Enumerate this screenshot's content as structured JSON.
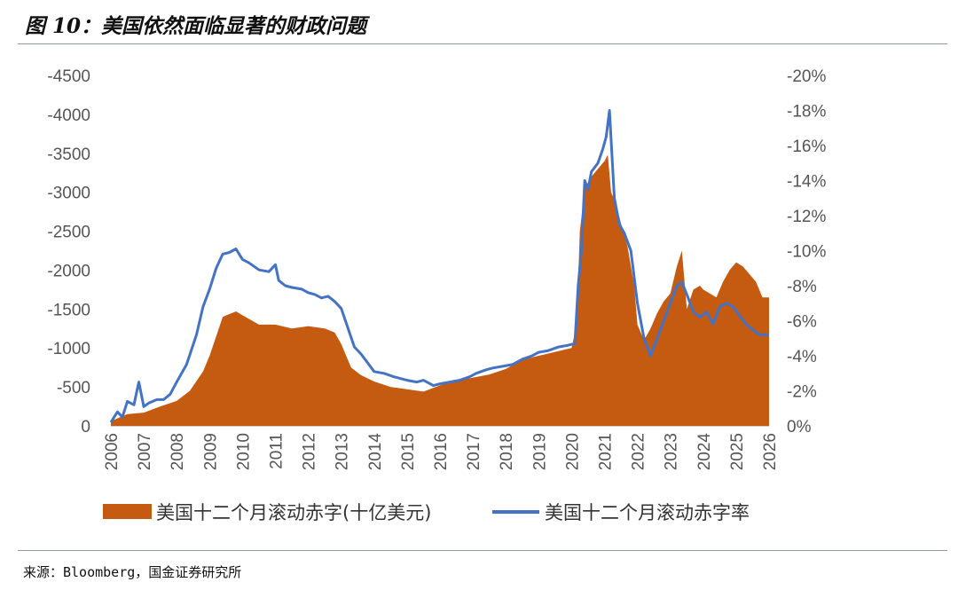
{
  "title": "图 10：美国依然面临显著的财政问题",
  "source": "来源：Bloomberg，国金证券研究所",
  "colors": {
    "deficit": "#c55a11",
    "ratio": "#4472c4",
    "axis": "#bfbfbf",
    "text": "#555555"
  },
  "chart_data": {
    "type": "area",
    "categories": [
      "2006",
      "2007",
      "2008",
      "2009",
      "2010",
      "2011",
      "2012",
      "2013",
      "2014",
      "2015",
      "2016",
      "2017",
      "2018",
      "2019",
      "2020",
      "2021",
      "2022",
      "2023",
      "2024",
      "2025",
      "2026"
    ],
    "y_left": {
      "ylim": [
        0,
        -4500
      ],
      "ticks": [
        "0",
        "-500",
        "-1000",
        "-1500",
        "-2000",
        "-2500",
        "-3000",
        "-3500",
        "-4000",
        "-4500"
      ]
    },
    "y_right": {
      "ylim": [
        0,
        -20
      ],
      "ticks": [
        "0%",
        "-2%",
        "-4%",
        "-6%",
        "-8%",
        "-10%",
        "-12%",
        "-14%",
        "-16%",
        "-18%",
        "-20%"
      ]
    },
    "legend": [
      "美国十二个月滚动赤字(十亿美元)",
      "美国十二个月滚动赤字率"
    ],
    "series": [
      {
        "name": "美国十二个月滚动赤字(十亿美元)",
        "type": "area",
        "axis": "left",
        "x": [
          2006.0,
          2006.5,
          2007.0,
          2007.5,
          2008.0,
          2008.4,
          2008.8,
          2009.0,
          2009.2,
          2009.4,
          2009.8,
          2010.0,
          2010.5,
          2011.0,
          2011.2,
          2011.5,
          2012.0,
          2012.5,
          2012.8,
          2013.0,
          2013.3,
          2013.6,
          2014.0,
          2014.5,
          2015.0,
          2015.5,
          2016.0,
          2016.5,
          2017.0,
          2017.5,
          2018.0,
          2018.5,
          2019.0,
          2019.5,
          2020.0,
          2020.15,
          2020.25,
          2020.4,
          2020.6,
          2020.8,
          2021.0,
          2021.1,
          2021.2,
          2021.35,
          2021.5,
          2021.7,
          2021.9,
          2022.0,
          2022.2,
          2022.4,
          2022.6,
          2022.8,
          2023.0,
          2023.2,
          2023.35,
          2023.5,
          2023.7,
          2023.9,
          2024.0,
          2024.2,
          2024.4,
          2024.6,
          2024.8,
          2025.0,
          2025.2,
          2025.4,
          2025.6,
          2025.8,
          2026.0
        ],
        "values": [
          -60,
          -150,
          -170,
          -250,
          -320,
          -450,
          -700,
          -900,
          -1150,
          -1400,
          -1470,
          -1420,
          -1300,
          -1300,
          -1280,
          -1250,
          -1280,
          -1250,
          -1200,
          -1050,
          -750,
          -650,
          -570,
          -500,
          -470,
          -440,
          -520,
          -580,
          -620,
          -660,
          -730,
          -850,
          -900,
          -950,
          -1000,
          -1300,
          -2500,
          -3050,
          -3200,
          -3300,
          -3400,
          -3480,
          -3000,
          -2850,
          -2600,
          -2300,
          -1800,
          -1300,
          -1100,
          -1250,
          -1450,
          -1600,
          -1700,
          -2050,
          -2250,
          -1500,
          -1750,
          -1800,
          -1750,
          -1700,
          -1650,
          -1850,
          -2000,
          -2100,
          -2050,
          -1950,
          -1850,
          -1650,
          -1650
        ]
      },
      {
        "name": "美国十二个月滚动赤字率",
        "type": "line",
        "axis": "right",
        "x": [
          2006.0,
          2006.2,
          2006.35,
          2006.5,
          2006.7,
          2006.85,
          2007.0,
          2007.15,
          2007.4,
          2007.6,
          2007.8,
          2008.0,
          2008.3,
          2008.6,
          2008.8,
          2009.0,
          2009.2,
          2009.4,
          2009.6,
          2009.8,
          2010.0,
          2010.2,
          2010.5,
          2010.8,
          2011.0,
          2011.1,
          2011.3,
          2011.5,
          2011.8,
          2012.0,
          2012.2,
          2012.4,
          2012.6,
          2012.8,
          2013.0,
          2013.2,
          2013.4,
          2013.6,
          2013.8,
          2014.0,
          2014.3,
          2014.6,
          2015.0,
          2015.3,
          2015.5,
          2015.8,
          2016.0,
          2016.3,
          2016.6,
          2016.9,
          2017.1,
          2017.4,
          2017.6,
          2017.9,
          2018.2,
          2018.5,
          2018.8,
          2019.0,
          2019.3,
          2019.6,
          2019.9,
          2020.1,
          2020.2,
          2020.3,
          2020.4,
          2020.5,
          2020.6,
          2020.8,
          2020.95,
          2021.05,
          2021.15,
          2021.3,
          2021.45,
          2021.6,
          2021.8,
          2022.0,
          2022.2,
          2022.4,
          2022.6,
          2022.8,
          2023.0,
          2023.2,
          2023.35,
          2023.5,
          2023.7,
          2023.9,
          2024.1,
          2024.3,
          2024.5,
          2024.7,
          2024.9,
          2025.1,
          2025.3,
          2025.5,
          2025.7,
          2025.9,
          2026.0
        ],
        "values": [
          0.2,
          0.8,
          0.5,
          1.4,
          1.2,
          2.5,
          1.1,
          1.3,
          1.5,
          1.5,
          1.8,
          2.5,
          3.5,
          5.2,
          6.8,
          7.8,
          9.0,
          9.8,
          9.9,
          10.1,
          9.5,
          9.3,
          8.9,
          8.8,
          9.2,
          8.3,
          8.0,
          7.9,
          7.8,
          7.6,
          7.5,
          7.3,
          7.4,
          7.1,
          6.7,
          5.6,
          4.5,
          4.1,
          3.6,
          3.1,
          3.0,
          2.8,
          2.6,
          2.5,
          2.6,
          2.3,
          2.4,
          2.5,
          2.6,
          2.8,
          3.0,
          3.2,
          3.3,
          3.4,
          3.5,
          3.8,
          4.0,
          4.2,
          4.3,
          4.5,
          4.6,
          4.7,
          8.0,
          10.0,
          14.0,
          13.5,
          14.5,
          15.0,
          15.8,
          16.5,
          18.0,
          13.0,
          11.5,
          11.0,
          10.0,
          7.0,
          5.0,
          4.0,
          5.0,
          6.0,
          7.0,
          8.0,
          8.2,
          7.5,
          6.5,
          6.2,
          6.5,
          5.8,
          6.8,
          7.0,
          6.8,
          6.3,
          5.8,
          5.5,
          5.2,
          5.2,
          5.2
        ]
      }
    ]
  }
}
